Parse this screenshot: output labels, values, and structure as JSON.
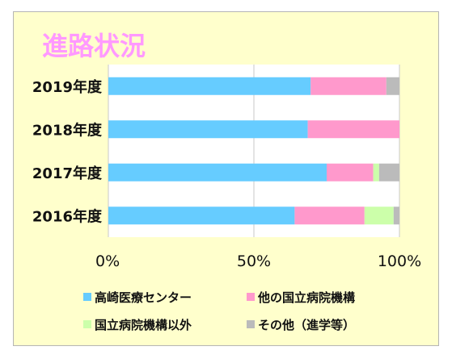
{
  "chart_data": {
    "type": "bar",
    "orientation": "horizontal",
    "stacked": "percent",
    "title": "進路状況",
    "categories": [
      "2019年度",
      "2018年度",
      "2017年度",
      "2016年度"
    ],
    "series": [
      {
        "name": "高崎医療センター",
        "color": "#66ccff",
        "values": [
          69.5,
          68.5,
          75.0,
          64.0
        ]
      },
      {
        "name": "他の国立病院機構",
        "color": "#ff99cc",
        "values": [
          26.0,
          31.5,
          16.0,
          24.0
        ]
      },
      {
        "name": "国立病院機構以外",
        "color": "#ccffaa",
        "values": [
          0,
          0,
          2.0,
          10.0
        ]
      },
      {
        "name": "その他（進学等）",
        "color": "#bbbbbb",
        "values": [
          4.5,
          0,
          7.0,
          2.0
        ]
      }
    ],
    "x_ticks": [
      "0%",
      "50%",
      "100%"
    ],
    "xlim": [
      0,
      100
    ],
    "grid": true,
    "legend_position": "bottom"
  }
}
